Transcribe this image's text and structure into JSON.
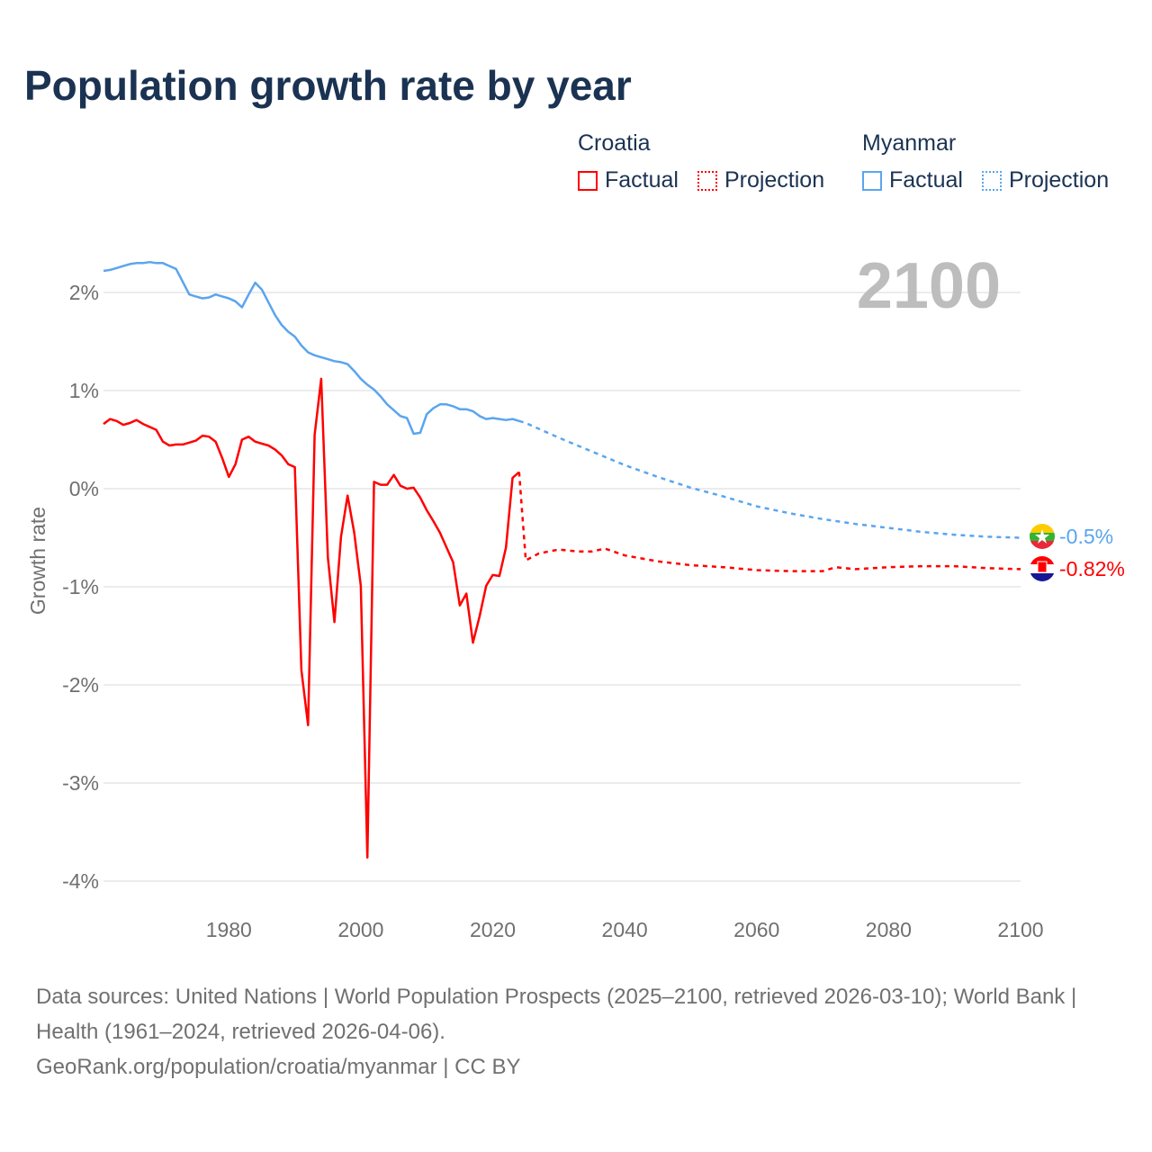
{
  "title": "Population growth rate by year",
  "legend": {
    "croatia": {
      "name": "Croatia",
      "factual": "Factual",
      "projection": "Projection",
      "color": "#ff0000"
    },
    "myanmar": {
      "name": "Myanmar",
      "factual": "Factual",
      "projection": "Projection",
      "color": "#5aa5ef"
    }
  },
  "year_label": "2100",
  "end_labels": {
    "myanmar": "-0.5%",
    "croatia": "-0.82%"
  },
  "footer": {
    "sources": "Data sources: United Nations | World Population Prospects (2025–2100, retrieved 2026-03-10); World Bank | Health (1961–2024, retrieved 2026-04-06).",
    "credit": "GeoRank.org/population/croatia/myanmar | CC BY"
  },
  "chart_data": {
    "type": "line",
    "title": "Population growth rate by year",
    "xlabel": "",
    "ylabel": "Growth rate",
    "xlim": [
      1961,
      2100
    ],
    "ylim": [
      -4.3,
      2.4
    ],
    "x_ticks": [
      1980,
      2000,
      2020,
      2040,
      2060,
      2080,
      2100
    ],
    "x_tick_labels": [
      "1980",
      "2000",
      "2020",
      "2040",
      "2060",
      "2080",
      "2100"
    ],
    "y_ticks": [
      2,
      1,
      0,
      -1,
      -2,
      -3,
      -4
    ],
    "y_tick_labels": [
      "2%",
      "1%",
      "0%",
      "-1%",
      "-2%",
      "-3%",
      "-4%"
    ],
    "grid": true,
    "legend_position": "top-right",
    "series": [
      {
        "name": "Croatia",
        "kind": "Factual",
        "color": "#ff0000",
        "dashed": false,
        "x": [
          1961,
          1962,
          1963,
          1964,
          1965,
          1966,
          1967,
          1968,
          1969,
          1970,
          1971,
          1972,
          1973,
          1974,
          1975,
          1976,
          1977,
          1978,
          1979,
          1980,
          1981,
          1982,
          1983,
          1984,
          1985,
          1986,
          1987,
          1988,
          1989,
          1990,
          1991,
          1992,
          1993,
          1994,
          1995,
          1996,
          1997,
          1998,
          1999,
          2000,
          2001,
          2002,
          2003,
          2004,
          2005,
          2006,
          2007,
          2008,
          2009,
          2010,
          2011,
          2012,
          2013,
          2014,
          2015,
          2016,
          2017,
          2018,
          2019,
          2020,
          2021,
          2022,
          2023,
          2024
        ],
        "y": [
          0.66,
          0.71,
          0.69,
          0.65,
          0.67,
          0.7,
          0.66,
          0.63,
          0.6,
          0.48,
          0.44,
          0.45,
          0.45,
          0.47,
          0.49,
          0.54,
          0.53,
          0.48,
          0.31,
          0.12,
          0.25,
          0.5,
          0.53,
          0.48,
          0.46,
          0.44,
          0.4,
          0.34,
          0.25,
          0.22,
          -1.85,
          -2.41,
          0.55,
          1.12,
          -0.7,
          -1.36,
          -0.49,
          -0.07,
          -0.45,
          -0.99,
          -3.76,
          0.07,
          0.04,
          0.04,
          0.14,
          0.03,
          0.0,
          0.01,
          -0.09,
          -0.22,
          -0.33,
          -0.45,
          -0.6,
          -0.75,
          -1.19,
          -1.07,
          -1.57,
          -1.3,
          -0.99,
          -0.88,
          -0.89,
          -0.6,
          0.11,
          0.17
        ]
      },
      {
        "name": "Croatia",
        "kind": "Projection",
        "color": "#ff0000",
        "dashed": true,
        "x": [
          2024,
          2025,
          2027,
          2030,
          2033,
          2035,
          2037,
          2040,
          2045,
          2050,
          2055,
          2060,
          2065,
          2070,
          2072,
          2075,
          2080,
          2085,
          2090,
          2095,
          2100
        ],
        "y": [
          0.17,
          -0.73,
          -0.66,
          -0.62,
          -0.64,
          -0.64,
          -0.61,
          -0.68,
          -0.74,
          -0.78,
          -0.8,
          -0.83,
          -0.84,
          -0.84,
          -0.8,
          -0.82,
          -0.8,
          -0.79,
          -0.79,
          -0.81,
          -0.82
        ]
      },
      {
        "name": "Myanmar",
        "kind": "Factual",
        "color": "#5aa5ef",
        "dashed": false,
        "x": [
          1961,
          1962,
          1963,
          1964,
          1965,
          1966,
          1967,
          1968,
          1969,
          1970,
          1971,
          1972,
          1973,
          1974,
          1975,
          1976,
          1977,
          1978,
          1979,
          1980,
          1981,
          1982,
          1983,
          1984,
          1985,
          1986,
          1987,
          1988,
          1989,
          1990,
          1991,
          1992,
          1993,
          1994,
          1995,
          1996,
          1997,
          1998,
          1999,
          2000,
          2001,
          2002,
          2003,
          2004,
          2005,
          2006,
          2007,
          2008,
          2009,
          2010,
          2011,
          2012,
          2013,
          2014,
          2015,
          2016,
          2017,
          2018,
          2019,
          2020,
          2021,
          2022,
          2023,
          2024
        ],
        "y": [
          2.22,
          2.23,
          2.25,
          2.27,
          2.29,
          2.3,
          2.3,
          2.31,
          2.3,
          2.3,
          2.27,
          2.24,
          2.11,
          1.98,
          1.96,
          1.94,
          1.95,
          1.98,
          1.96,
          1.94,
          1.91,
          1.85,
          1.98,
          2.1,
          2.03,
          1.9,
          1.77,
          1.67,
          1.6,
          1.55,
          1.46,
          1.39,
          1.36,
          1.34,
          1.32,
          1.3,
          1.29,
          1.27,
          1.2,
          1.12,
          1.06,
          1.01,
          0.94,
          0.86,
          0.8,
          0.74,
          0.72,
          0.56,
          0.57,
          0.76,
          0.82,
          0.86,
          0.86,
          0.84,
          0.81,
          0.81,
          0.79,
          0.74,
          0.71,
          0.72,
          0.71,
          0.7,
          0.71,
          0.69
        ]
      },
      {
        "name": "Myanmar",
        "kind": "Projection",
        "color": "#5aa5ef",
        "dashed": true,
        "x": [
          2024,
          2025,
          2030,
          2035,
          2040,
          2045,
          2050,
          2055,
          2060,
          2065,
          2070,
          2075,
          2080,
          2085,
          2090,
          2095,
          2100
        ],
        "y": [
          0.69,
          0.67,
          0.52,
          0.38,
          0.24,
          0.12,
          0.01,
          -0.08,
          -0.18,
          -0.25,
          -0.31,
          -0.36,
          -0.4,
          -0.44,
          -0.47,
          -0.49,
          -0.5
        ]
      }
    ]
  }
}
